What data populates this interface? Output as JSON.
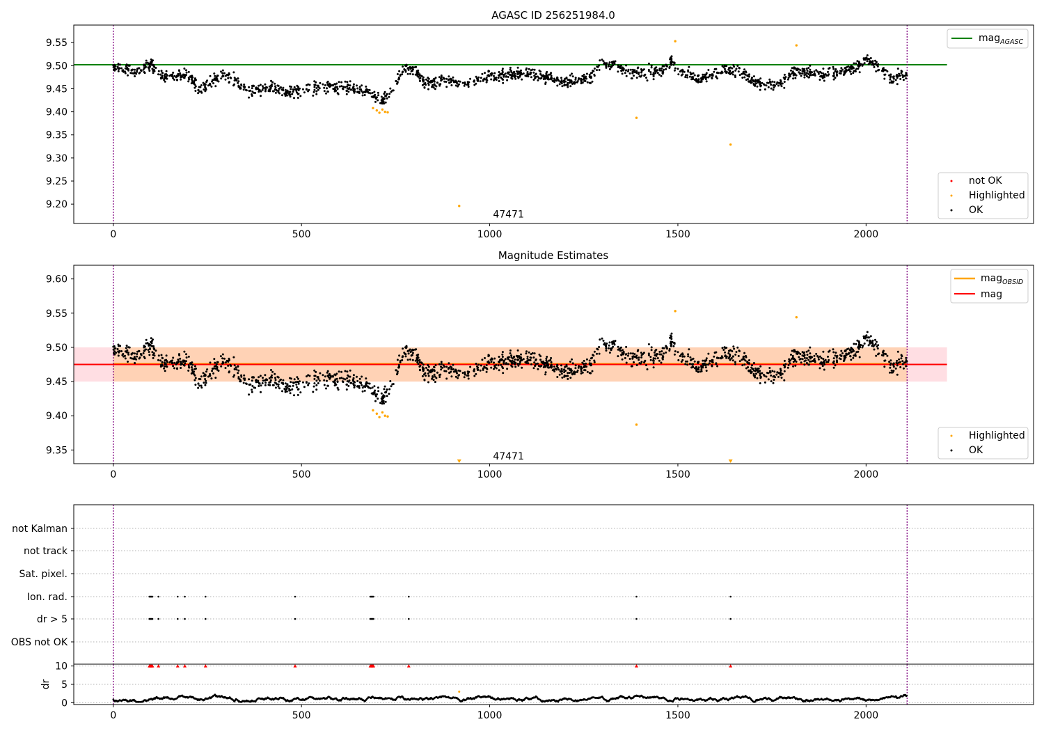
{
  "chart_data": [
    {
      "id": "agasc",
      "type": "scatter",
      "title": "AGASC ID 256251984.0",
      "xlim": [
        -105,
        2445
      ],
      "ylim": [
        9.158,
        9.588
      ],
      "x_ticks": [
        0,
        500,
        1000,
        1500,
        2000
      ],
      "y_ticks": [
        9.2,
        9.25,
        9.3,
        9.35,
        9.4,
        9.45,
        9.5,
        9.55
      ],
      "grid": false,
      "series": [
        {
          "name": "not OK",
          "color": "#ff0000",
          "points": []
        },
        {
          "name": "Highlighted",
          "color": "#ffa500",
          "points": [
            [
              690,
              9.408
            ],
            [
              700,
              9.403
            ],
            [
              707,
              9.398
            ],
            [
              715,
              9.405
            ],
            [
              722,
              9.4
            ],
            [
              729,
              9.399
            ],
            [
              919,
              9.196
            ],
            [
              1390,
              9.387
            ],
            [
              1493,
              9.553
            ],
            [
              1640,
              9.329
            ],
            [
              1815,
              9.544
            ]
          ]
        },
        {
          "name": "OK",
          "color": "#000000",
          "points": "generated"
        }
      ],
      "hlines": [
        {
          "name": "mag_AGASC",
          "label_base": "mag",
          "label_sub": "AGASC",
          "y": 9.502,
          "x_end": 2215,
          "color": "#008000"
        }
      ],
      "vlines": [
        0,
        2109
      ],
      "vline_color": "#800080",
      "annotation": {
        "text": "47471",
        "x": 1050,
        "y": 9.178
      },
      "legend_upper": [
        {
          "label_base": "mag",
          "label_sub": "AGASC",
          "color": "#008000"
        }
      ],
      "legend_lower": [
        {
          "label": "not OK",
          "color": "#ff0000"
        },
        {
          "label": "Highlighted",
          "color": "#ffa500"
        },
        {
          "label": "OK",
          "color": "#000000"
        }
      ],
      "legend_placement": "upper right / lower right"
    },
    {
      "id": "estimates",
      "type": "scatter",
      "title": "Magnitude Estimates",
      "xlim": [
        -105,
        2445
      ],
      "ylim": [
        9.33,
        9.62
      ],
      "x_ticks": [
        0,
        500,
        1000,
        1500,
        2000
      ],
      "y_ticks": [
        9.35,
        9.4,
        9.45,
        9.5,
        9.55,
        9.6
      ],
      "grid": false,
      "series": [
        {
          "name": "Highlighted",
          "color": "#ffa500",
          "points": [
            [
              690,
              9.408
            ],
            [
              700,
              9.403
            ],
            [
              707,
              9.398
            ],
            [
              715,
              9.405
            ],
            [
              722,
              9.4
            ],
            [
              729,
              9.399
            ],
            [
              1390,
              9.387
            ],
            [
              1493,
              9.553
            ],
            [
              1815,
              9.544
            ]
          ]
        },
        {
          "name": "OK",
          "color": "#000000",
          "points": "generated"
        }
      ],
      "offscale_markers": [
        {
          "x": 919,
          "color": "#ffa500"
        },
        {
          "x": 1640,
          "color": "#ffa500"
        }
      ],
      "bands": [
        {
          "y0": 9.45,
          "y1": 9.5,
          "x0": -105,
          "x1": 2215,
          "color": "#ffb6c1",
          "opacity": 0.45
        },
        {
          "y0": 9.45,
          "y1": 9.5,
          "x0": 0,
          "x1": 2109,
          "color": "#ffa500",
          "opacity": 0.2
        }
      ],
      "hlines": [
        {
          "name": "mag_OBSID",
          "label_base": "mag",
          "label_sub": "OBSID",
          "y": 9.476,
          "x0": 0,
          "x_end": 2109,
          "color": "#ffa500"
        },
        {
          "name": "mag",
          "label_base": "mag",
          "label_sub": "",
          "y": 9.475,
          "x0": -105,
          "x_end": 2215,
          "color": "#ff0000"
        }
      ],
      "vlines": [
        0,
        2109
      ],
      "vline_color": "#800080",
      "annotation": {
        "text": "47471",
        "x": 1050,
        "y": 9.341
      },
      "legend_upper": [
        {
          "label_base": "mag",
          "label_sub": "OBSID",
          "color": "#ffa500"
        },
        {
          "label_base": "mag",
          "label_sub": "",
          "color": "#ff0000"
        }
      ],
      "legend_lower": [
        {
          "label": "Highlighted",
          "color": "#ffa500"
        },
        {
          "label": "OK",
          "color": "#000000"
        }
      ],
      "legend_placement": "upper right / lower right"
    },
    {
      "id": "flags",
      "type": "scatter",
      "xlim": [
        -105,
        2445
      ],
      "categories": [
        "not Kalman",
        "not track",
        "Sat. pixel.",
        "Ion. rad.",
        "dr > 5",
        "OBS not OK"
      ],
      "grid": "horizontal dotted",
      "flag_points": {
        "Ion. rad.": [
          96,
          98,
          100,
          102,
          104,
          120,
          171,
          190,
          245,
          483,
          683,
          685,
          687,
          689,
          691,
          785,
          1390,
          1640
        ],
        "dr > 5": [
          96,
          98,
          100,
          102,
          104,
          120,
          171,
          190,
          245,
          483,
          683,
          685,
          687,
          689,
          691,
          785,
          1390,
          1640
        ]
      },
      "vlines": [
        0,
        2109
      ],
      "vline_color": "#800080"
    },
    {
      "id": "dr",
      "type": "scatter",
      "xlim": [
        -105,
        2445
      ],
      "ylim": [
        -0.5,
        10.5
      ],
      "ylabel": "dr",
      "x_ticks": [
        0,
        500,
        1000,
        1500,
        2000
      ],
      "y_ticks": [
        0,
        5,
        10
      ],
      "grid": "horizontal dotted",
      "series": [
        {
          "name": "dr",
          "color": "#000000",
          "points": "generated",
          "note": "continuous trace 0.3–2.5"
        },
        {
          "name": "dr (Highlighted)",
          "color": "#ffa500",
          "points": [
            [
              919,
              3.0
            ]
          ]
        }
      ],
      "capped_markers": {
        "y": 10,
        "color": "#ff0000",
        "x": [
          96,
          98,
          100,
          102,
          104,
          120,
          171,
          190,
          245,
          483,
          683,
          685,
          687,
          689,
          691,
          785,
          1390,
          1640
        ]
      },
      "vlines": [
        0,
        2109
      ],
      "vline_color": "#800080"
    }
  ]
}
